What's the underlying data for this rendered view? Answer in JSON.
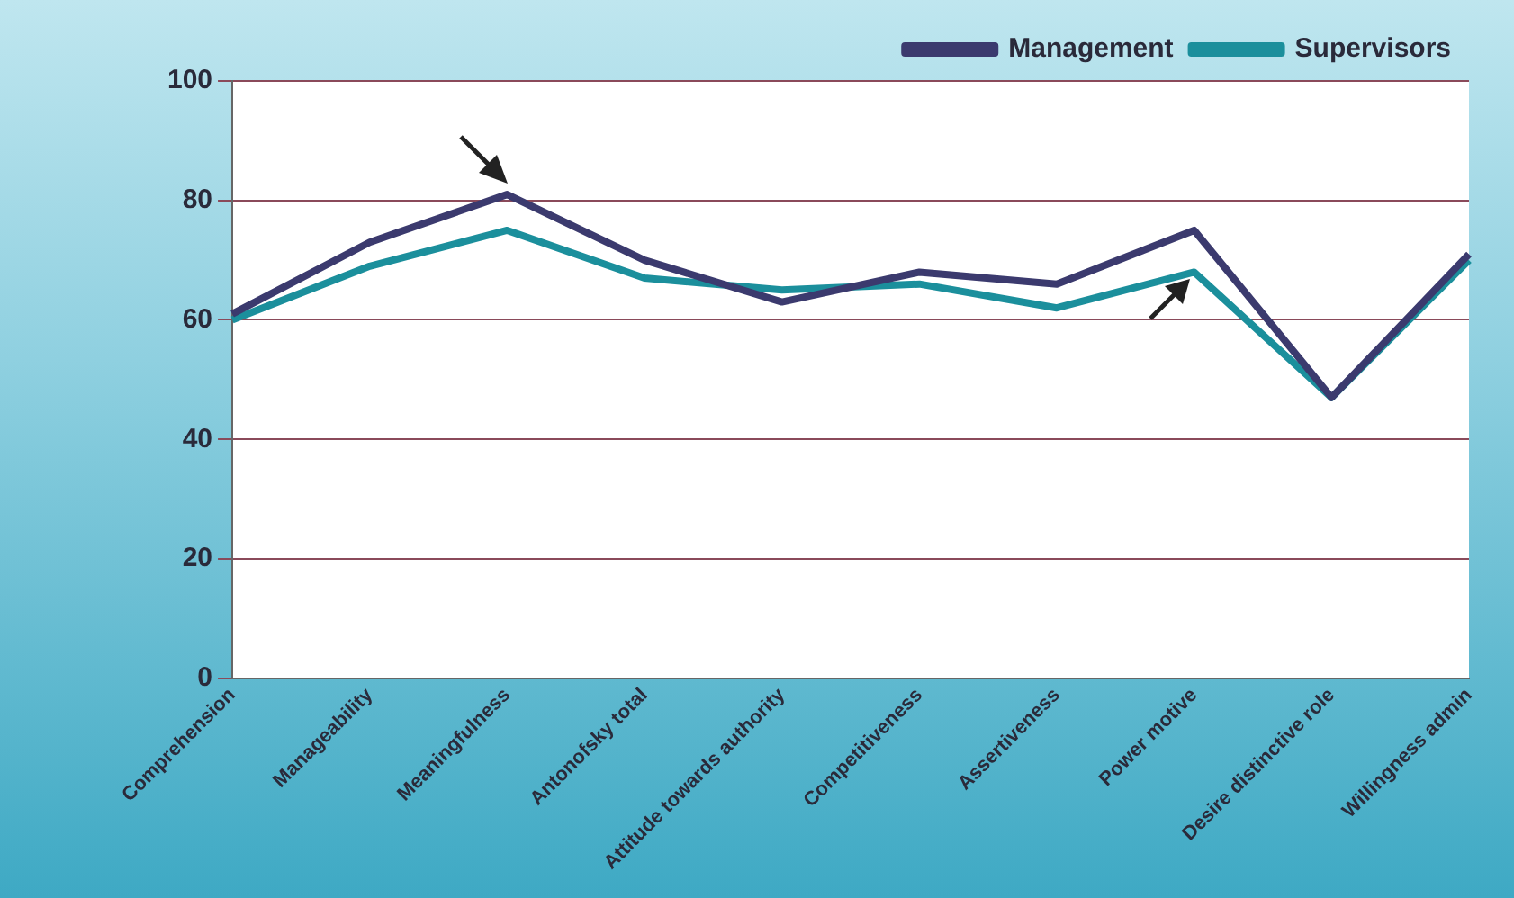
{
  "chart_data": {
    "type": "line",
    "categories": [
      "Comprehension",
      "Manageability",
      "Meaningfulness",
      "Antonofsky total",
      "Attitude towards authority",
      "Competitiveness",
      "Assertiveness",
      "Power motive",
      "Desire distinctive role",
      "Willingness admin"
    ],
    "series": [
      {
        "name": "Management",
        "color": "#3b3a6e",
        "values": [
          61,
          73,
          81,
          70,
          63,
          68,
          66,
          75,
          47,
          71
        ]
      },
      {
        "name": "Supervisors",
        "color": "#1b8f9c",
        "values": [
          60,
          69,
          75,
          67,
          65,
          66,
          62,
          68,
          47,
          70
        ]
      }
    ],
    "ylim": [
      0,
      100
    ],
    "yticks": [
      0,
      20,
      40,
      60,
      80,
      100
    ],
    "grid": "y",
    "legend": "top right",
    "marker": "none",
    "line_style": "solid"
  }
}
